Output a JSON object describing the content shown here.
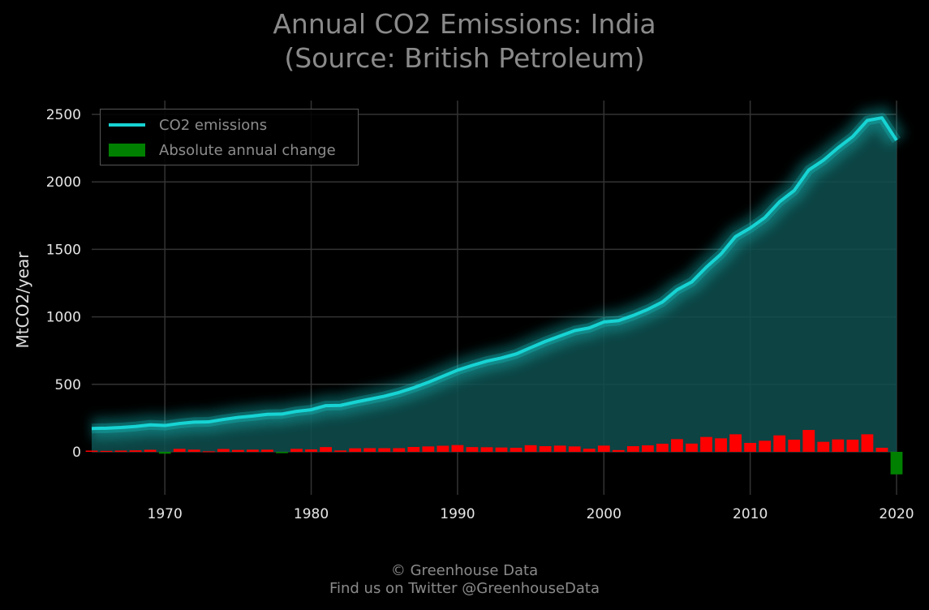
{
  "footer": {
    "copyright": "© Greenhouse Data",
    "twitter": "Find us on Twitter @GreenhouseData"
  },
  "colors": {
    "background": "#000000",
    "line": "#17d4d4",
    "area": "#0f4f4f",
    "positive_change": "#ff0000",
    "negative_change": "#008000",
    "grid": "#333333",
    "title": "#8a8a8a"
  },
  "chart_data": {
    "type": "line",
    "title": "Annual CO2 Emissions: India",
    "subtitle": "(Source: British Petroleum)",
    "xlabel": "",
    "ylabel": "MtCO2/year",
    "xlim": [
      1965,
      2020
    ],
    "ylim": [
      -200,
      2600
    ],
    "xticks": [
      "1970",
      "1980",
      "1990",
      "2000",
      "2010",
      "2020"
    ],
    "yticks": [
      "0",
      "500",
      "1000",
      "1500",
      "2000",
      "2500"
    ],
    "grid": true,
    "legend": {
      "position": "top-left",
      "entries": [
        "CO2 emissions",
        "Absolute annual change"
      ]
    },
    "x": [
      1965,
      1966,
      1967,
      1968,
      1969,
      1970,
      1971,
      1972,
      1973,
      1974,
      1975,
      1976,
      1977,
      1978,
      1979,
      1980,
      1981,
      1982,
      1983,
      1984,
      1985,
      1986,
      1987,
      1988,
      1989,
      1990,
      1991,
      1992,
      1993,
      1994,
      1995,
      1996,
      1997,
      1998,
      1999,
      2000,
      2001,
      2002,
      2003,
      2004,
      2005,
      2006,
      2007,
      2008,
      2009,
      2010,
      2011,
      2012,
      2013,
      2014,
      2015,
      2016,
      2017,
      2018,
      2019,
      2020
    ],
    "series": [
      {
        "name": "CO2 emissions",
        "type": "line",
        "values": [
          173,
          175,
          180,
          188,
          200,
          195,
          210,
          220,
          222,
          240,
          255,
          265,
          278,
          280,
          300,
          312,
          342,
          344,
          368,
          390,
          412,
          440,
          475,
          515,
          560,
          605,
          640,
          672,
          695,
          725,
          772,
          818,
          858,
          898,
          918,
          962,
          972,
          1010,
          1055,
          1110,
          1200,
          1258,
          1368,
          1465,
          1595,
          1658,
          1735,
          1852,
          1935,
          2088,
          2160,
          2252,
          2335,
          2455,
          2475,
          2308
        ]
      },
      {
        "name": "Absolute annual change",
        "type": "bar",
        "values": [
          9,
          7,
          9,
          11,
          15,
          -14,
          22,
          16,
          4,
          21,
          14,
          16,
          16,
          -10,
          22,
          18,
          35,
          10,
          26,
          27,
          27,
          27,
          36,
          40,
          45,
          50,
          35,
          34,
          32,
          30,
          49,
          42,
          46,
          40,
          23,
          46,
          13,
          42,
          48,
          60,
          94,
          61,
          110,
          100,
          130,
          66,
          82,
          122,
          90,
          162,
          74,
          92,
          90,
          130,
          30,
          -167
        ]
      }
    ]
  }
}
